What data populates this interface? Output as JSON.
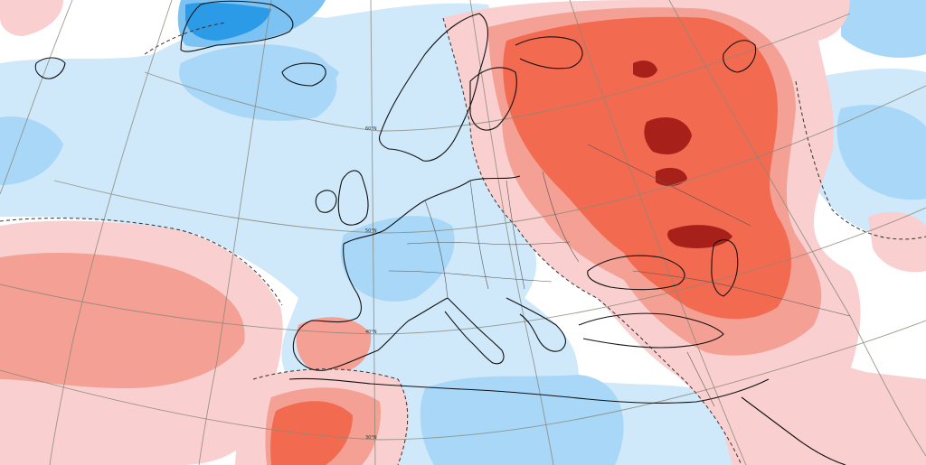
{
  "map": {
    "type": "anomaly-field",
    "palette": {
      "background": "#ffffff",
      "light_blue": "#cfe8fa",
      "medium_blue": "#a9d7f7",
      "blue": "#7cc2f2",
      "dark_blue": "#2b9be8",
      "light_red": "#f9cfcf",
      "medium_red": "#f4a094",
      "red": "#f26a4f",
      "dark_red": "#a8201a"
    },
    "latitude_labels": [
      "60°N",
      "50°N",
      "40°N",
      "30°N"
    ]
  }
}
